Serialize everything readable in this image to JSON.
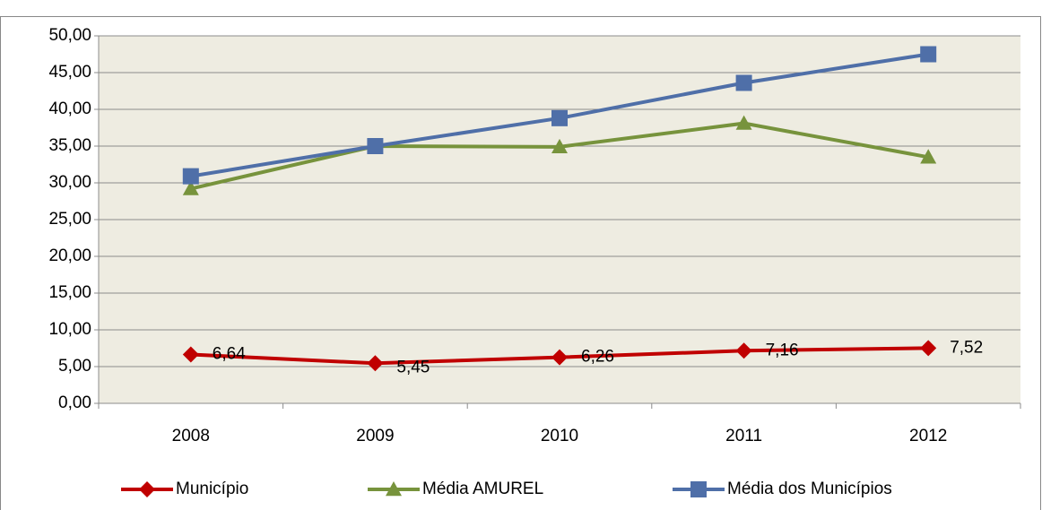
{
  "chart_data": {
    "type": "line",
    "categories": [
      "2008",
      "2009",
      "2010",
      "2011",
      "2012"
    ],
    "series": [
      {
        "name": "Município",
        "color": "#c00000",
        "marker": "diamond",
        "values": [
          6.64,
          5.45,
          6.26,
          7.16,
          7.52
        ],
        "value_labels": [
          "6,64",
          "5,45",
          "6,26",
          "7,16",
          "7,52"
        ]
      },
      {
        "name": "Média AMUREL",
        "color": "#77933c",
        "marker": "triangle",
        "values": [
          29.2,
          35.0,
          34.9,
          38.1,
          33.5
        ]
      },
      {
        "name": "Média dos Municípios",
        "color": "#4f6fa8",
        "marker": "square",
        "values": [
          30.9,
          35.0,
          38.8,
          43.6,
          47.5
        ]
      }
    ],
    "ylim": [
      0,
      50
    ],
    "yticks": [
      {
        "value": 0,
        "label": "0,00"
      },
      {
        "value": 5,
        "label": "5,00"
      },
      {
        "value": 10,
        "label": "10,00"
      },
      {
        "value": 15,
        "label": "15,00"
      },
      {
        "value": 20,
        "label": "20,00"
      },
      {
        "value": 25,
        "label": "25,00"
      },
      {
        "value": 30,
        "label": "30,00"
      },
      {
        "value": 35,
        "label": "35,00"
      },
      {
        "value": 40,
        "label": "40,00"
      },
      {
        "value": 45,
        "label": "45,00"
      },
      {
        "value": 50,
        "label": "50,00"
      }
    ],
    "grid": true,
    "legend": "bottom"
  }
}
